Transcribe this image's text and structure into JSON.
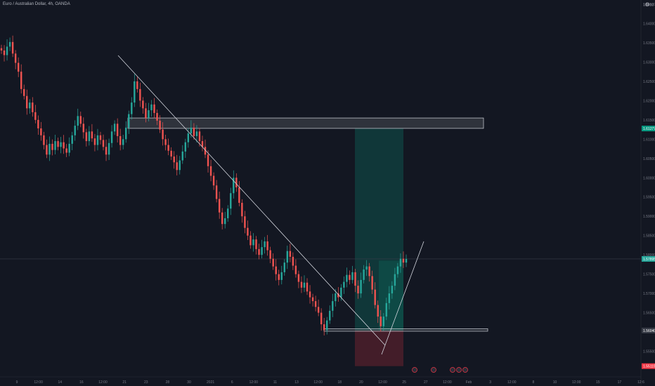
{
  "header": {
    "symbol_title": "Euro / Australian Dollar, 4h, OANDA",
    "top_right_value": "1.6450"
  },
  "colors": {
    "background": "#131722",
    "up": "#26a69a",
    "down": "#ef5350",
    "axis_text": "#787b86",
    "price_line": "#363a45",
    "current_tag": "#26a69a",
    "target_tag": "#089981",
    "stop_tag": "#f23645",
    "zone_fill": "rgba(255,255,255,0.12)",
    "profit_fill": "rgba(8,153,129,0.25)",
    "loss_fill": "rgba(242,54,69,0.22)"
  },
  "chart_data": {
    "type": "candlestick",
    "title": "Euro / Australian Dollar, 4h, OANDA",
    "ylim": [
      1.55,
      1.645
    ],
    "y_ticks": [
      "1.64500",
      "1.64000",
      "1.63500",
      "1.63000",
      "1.62500",
      "1.62000",
      "1.61500",
      "1.61000",
      "1.60500",
      "1.60000",
      "1.59500",
      "1.59000",
      "1.58500",
      "1.58000",
      "1.57500",
      "1.57000",
      "1.56500",
      "1.56000",
      "1.55500"
    ],
    "x_ticks": [
      "9",
      "12:00",
      "14",
      "16",
      "12:00",
      "21",
      "23",
      "28",
      "30",
      "2021",
      "6",
      "12:00",
      "11",
      "13",
      "12:00",
      "18",
      "20",
      "12:00",
      "25",
      "27",
      "12:00",
      "Feb",
      "3",
      "12:00",
      "8",
      "10",
      "12:00",
      "15",
      "17",
      "12:6"
    ],
    "price_tags": {
      "target": "1.61277",
      "current": "1.57895",
      "stop": "1.56040",
      "bottom": "1.55115"
    },
    "candle_closes": [
      1.633,
      1.6318,
      1.634,
      1.6352,
      1.6322,
      1.6298,
      1.6275,
      1.623,
      1.6212,
      1.618,
      1.6195,
      1.617,
      1.615,
      1.6128,
      1.611,
      1.6085,
      1.606,
      1.6088,
      1.6072,
      1.6095,
      1.608,
      1.6092,
      1.6076,
      1.6065,
      1.6088,
      1.611,
      1.6135,
      1.616,
      1.614,
      1.6118,
      1.6095,
      1.612,
      1.6102,
      1.6085,
      1.611,
      1.6098,
      1.608,
      1.606,
      1.609,
      1.612,
      1.614,
      1.6108,
      1.6085,
      1.61,
      1.613,
      1.6165,
      1.6195,
      1.625,
      1.623,
      1.62,
      1.618,
      1.6155,
      1.6175,
      1.619,
      1.6168,
      1.6148,
      1.6125,
      1.61,
      1.6085,
      1.607,
      1.6055,
      1.604,
      1.602,
      1.6045,
      1.6068,
      1.6092,
      1.6115,
      1.613,
      1.6108,
      1.612,
      1.6095,
      1.608,
      1.606,
      1.603,
      1.6005,
      1.598,
      1.5945,
      1.591,
      1.588,
      1.5895,
      1.592,
      1.596,
      1.6,
      1.5975,
      1.5935,
      1.59,
      1.587,
      1.585,
      1.5825,
      1.584,
      1.5815,
      1.58,
      1.582,
      1.5835,
      1.5812,
      1.579,
      1.577,
      1.575,
      1.5735,
      1.5755,
      1.578,
      1.581,
      1.5795,
      1.5772,
      1.575,
      1.573,
      1.5715,
      1.5728,
      1.5705,
      1.569,
      1.568,
      1.5665,
      1.565,
      1.562,
      1.5605,
      1.563,
      1.5655,
      1.568,
      1.57,
      1.569,
      1.5715,
      1.573,
      1.5748,
      1.5735,
      1.5755,
      1.572,
      1.57,
      1.5735,
      1.5762,
      1.577,
      1.5745,
      1.571,
      1.567,
      1.564,
      1.5615,
      1.564,
      1.5675,
      1.57,
      1.572,
      1.575,
      1.577,
      1.579,
      1.578,
      1.57895
    ],
    "drawings": {
      "supply_zone": [
        1.6128,
        1.6155
      ],
      "demand_zone": [
        1.5602,
        1.56085
      ],
      "profit_zone": [
        1.5604,
        1.61277
      ],
      "loss_zone": [
        1.55115,
        1.5604
      ]
    },
    "grid": false
  }
}
